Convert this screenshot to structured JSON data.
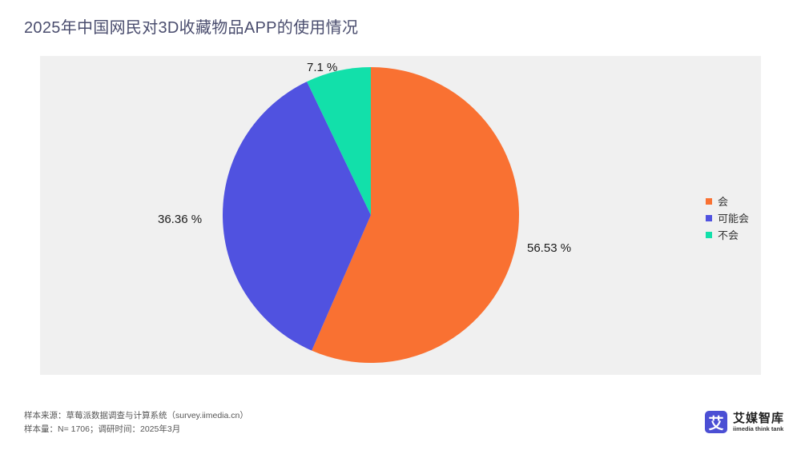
{
  "title": "2025年中国网民对3D收藏物品APP的使用情况",
  "chart_data": {
    "type": "pie",
    "title": "2025年中国网民对3D收藏物品APP的使用情况",
    "start_angle": "12 o'clock, clockwise",
    "categories": [
      "会",
      "可能会",
      "不会"
    ],
    "values": [
      56.53,
      36.36,
      7.1
    ],
    "labels": [
      "56.53 %",
      "36.36 %",
      "7.1 %"
    ],
    "colors": [
      "#f97132",
      "#5052e0",
      "#12e0aa"
    ],
    "legend_position": "right"
  },
  "legend": {
    "items": [
      {
        "label": "会",
        "color": "#f97132"
      },
      {
        "label": "可能会",
        "color": "#5052e0"
      },
      {
        "label": "不会",
        "color": "#12e0aa"
      }
    ]
  },
  "footer": {
    "source": "样本来源：草莓派数据调查与计算系统（survey.iimedia.cn）",
    "sample": "样本量：N= 1706；调研时间：2025年3月"
  },
  "logo": {
    "glyph": "艾",
    "name_cn": "艾媒智库",
    "name_en": "iimedia think tank",
    "color": "#4b4fd4"
  }
}
